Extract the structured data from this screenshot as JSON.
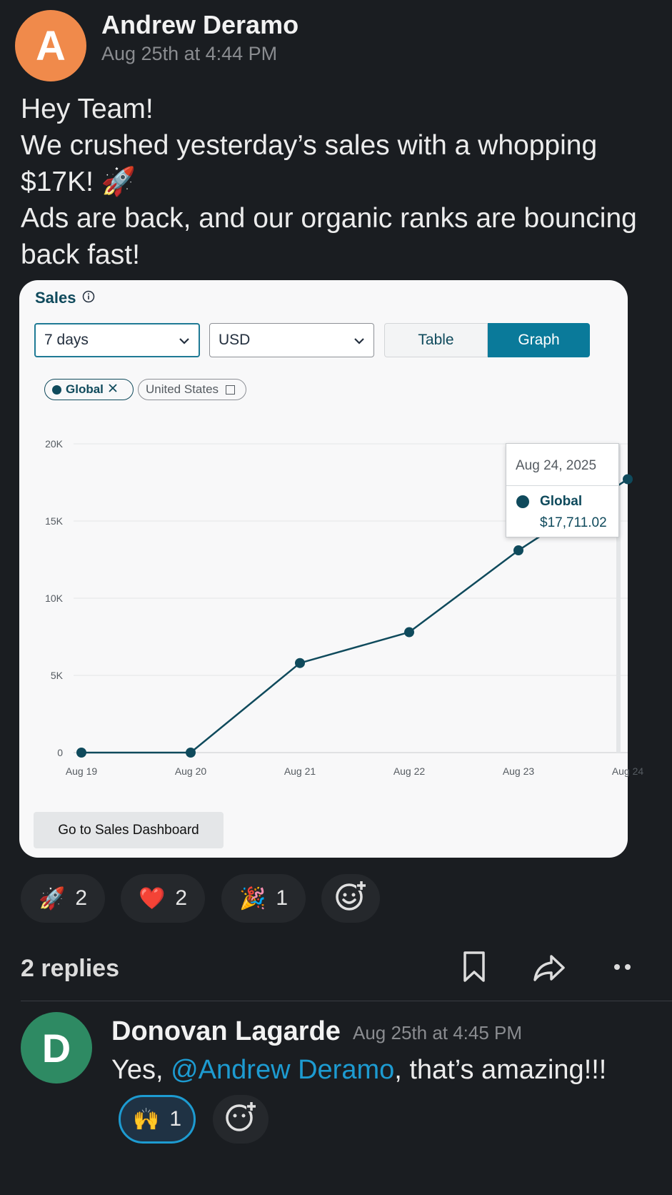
{
  "post": {
    "author_initial": "A",
    "author": "Andrew Deramo",
    "timestamp": "Aug 25th at 4:44 PM",
    "message_lines": [
      "Hey Team!",
      "We crushed yesterday’s sales with a whopping",
      "$17K! 🚀",
      "Ads are back, and our organic ranks are bouncing",
      "back fast!"
    ]
  },
  "card": {
    "title": "Sales",
    "info_icon": "info-icon",
    "range_select": "7 days",
    "currency_select": "USD",
    "toggle": {
      "table": "Table",
      "graph": "Graph",
      "active": "Graph"
    },
    "chips": [
      {
        "label": "Global",
        "active": true,
        "action_icon": "close-icon"
      },
      {
        "label": "United States",
        "active": false,
        "action_icon": "checkbox-icon"
      }
    ],
    "tooltip": {
      "date": "Aug 24, 2025",
      "series": "Global",
      "value": "$17,711.02"
    },
    "dashboard_button": "Go to Sales Dashboard"
  },
  "chart_data": {
    "type": "line",
    "x": [
      "Aug 19",
      "Aug 20",
      "Aug 21",
      "Aug 22",
      "Aug 23",
      "Aug 24"
    ],
    "series": [
      {
        "name": "Global",
        "values": [
          0,
          0,
          5800,
          7800,
          13100,
          17711.02
        ]
      }
    ],
    "y_ticks": [
      "0",
      "5K",
      "10K",
      "15K",
      "20K"
    ],
    "ylim": [
      0,
      20000
    ],
    "grid": true,
    "colors": {
      "line": "#0f4a5c",
      "accent": "#0a7a9a"
    }
  },
  "reactions": [
    {
      "emoji": "🚀",
      "count": "2"
    },
    {
      "emoji": "❤️",
      "count": "2"
    },
    {
      "emoji": "🎉",
      "count": "1"
    }
  ],
  "thread": {
    "replies_label": "2 replies",
    "icons": [
      "bookmark-icon",
      "share-icon",
      "more-icon"
    ]
  },
  "reply": {
    "author_initial": "D",
    "author": "Donovan Lagarde",
    "timestamp": "Aug 25th at 4:45 PM",
    "text_before": "Yes, ",
    "mention": "@Andrew Deramo",
    "text_after": ", that’s amazing!!!",
    "reaction": {
      "emoji": "🙌",
      "count": "1"
    }
  }
}
